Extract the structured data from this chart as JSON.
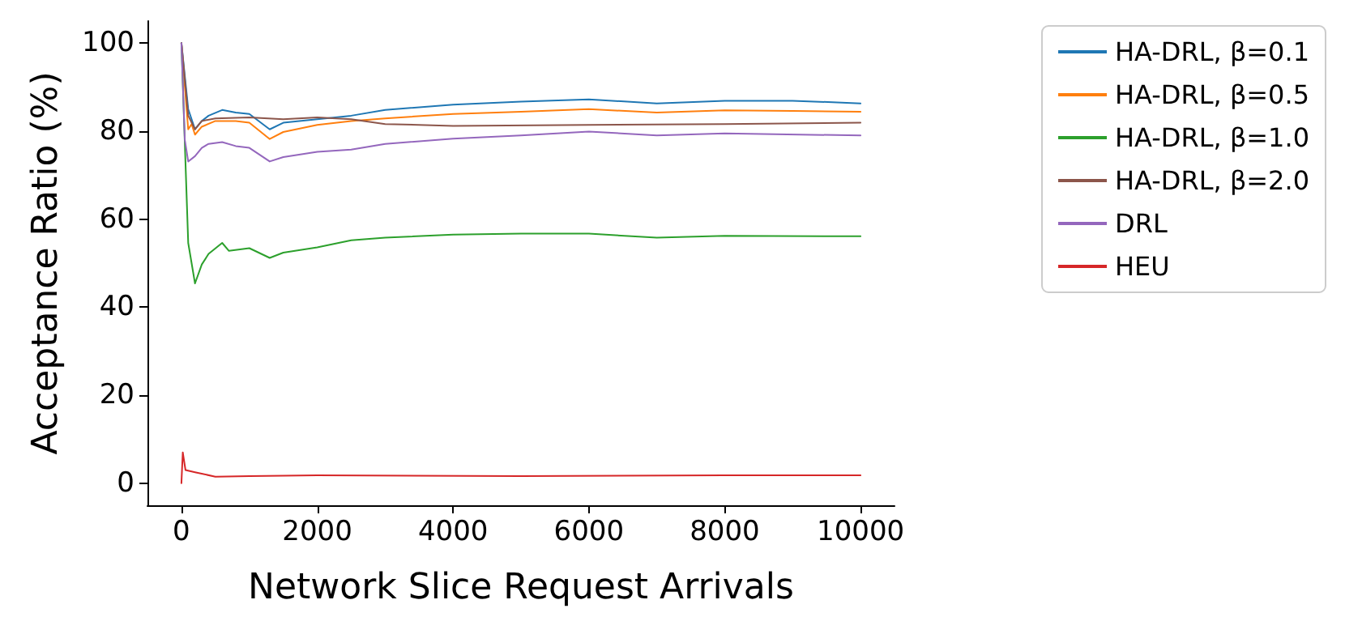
{
  "chart_data": {
    "type": "line",
    "xlabel": "Network Slice Request Arrivals",
    "ylabel": "Acceptance Ratio (%)",
    "xlim": [
      -500,
      10500
    ],
    "ylim": [
      -5,
      105
    ],
    "xticks": [
      0,
      2000,
      4000,
      6000,
      8000,
      10000
    ],
    "yticks": [
      0,
      20,
      40,
      60,
      80,
      100
    ],
    "grid": false,
    "legend": "top right",
    "marker": "none",
    "line_style": "solid",
    "series": [
      {
        "name": "HA-DRL, β=0.1",
        "color": "#1f77b4",
        "x": [
          0,
          100,
          200,
          300,
          400,
          600,
          800,
          1000,
          1300,
          1500,
          2000,
          2500,
          3000,
          4000,
          5000,
          6000,
          7000,
          8000,
          9000,
          10000
        ],
        "values": [
          100,
          85,
          80.4,
          82.3,
          83.5,
          84.8,
          84.2,
          83.9,
          80.4,
          81.9,
          82.7,
          83.5,
          84.8,
          86,
          86.7,
          87.2,
          86.3,
          86.9,
          86.9,
          86.3
        ]
      },
      {
        "name": "HA-DRL, β=0.5",
        "color": "#ff7f0e",
        "x": [
          0,
          100,
          150,
          200,
          300,
          500,
          800,
          1000,
          1300,
          1500,
          2000,
          2500,
          3000,
          4000,
          5000,
          6000,
          7000,
          8000,
          9000,
          10000
        ],
        "values": [
          100,
          80.4,
          81.6,
          79.2,
          81,
          82.3,
          82.3,
          81.9,
          78.2,
          79.8,
          81.4,
          82.3,
          82.9,
          83.9,
          84.4,
          85,
          84.2,
          84.7,
          84.6,
          84.4
        ]
      },
      {
        "name": "HA-DRL, β=1.0",
        "color": "#2ca02c",
        "x": [
          0,
          100,
          200,
          300,
          400,
          600,
          700,
          1000,
          1300,
          1500,
          2000,
          2500,
          3000,
          4000,
          5000,
          6000,
          7000,
          8000,
          10000
        ],
        "values": [
          100,
          54.6,
          45.4,
          49.7,
          52.1,
          54.6,
          52.8,
          53.4,
          51.2,
          52.4,
          53.6,
          55.2,
          55.8,
          56.5,
          56.7,
          56.7,
          55.8,
          56.2,
          56.1
        ]
      },
      {
        "name": "HA-DRL, β=2.0",
        "color": "#8c564b",
        "x": [
          0,
          100,
          200,
          300,
          500,
          1000,
          1500,
          2000,
          2500,
          3000,
          4000,
          6000,
          8000,
          10000
        ],
        "values": [
          100,
          83.5,
          80.4,
          82.3,
          82.9,
          83.1,
          82.7,
          83.1,
          82.7,
          81.6,
          81.2,
          81.4,
          81.6,
          81.9
        ]
      },
      {
        "name": "DRL",
        "color": "#9467bd",
        "x": [
          0,
          50,
          100,
          200,
          300,
          400,
          600,
          800,
          1000,
          1300,
          1500,
          2000,
          2500,
          3000,
          4000,
          5000,
          6000,
          7000,
          8000,
          10000
        ],
        "values": [
          100,
          78,
          73.1,
          74.3,
          76.2,
          77.1,
          77.5,
          76.6,
          76.2,
          73.1,
          74.1,
          75.3,
          75.8,
          77.1,
          78.3,
          79,
          79.9,
          79,
          79.5,
          79
        ]
      },
      {
        "name": "HEU",
        "color": "#d62728",
        "x": [
          0,
          20,
          60,
          200,
          500,
          1000,
          2000,
          5000,
          8000,
          10000
        ],
        "values": [
          0,
          7,
          3,
          2.5,
          1.5,
          1.6,
          1.8,
          1.6,
          1.8,
          1.8
        ]
      }
    ]
  }
}
